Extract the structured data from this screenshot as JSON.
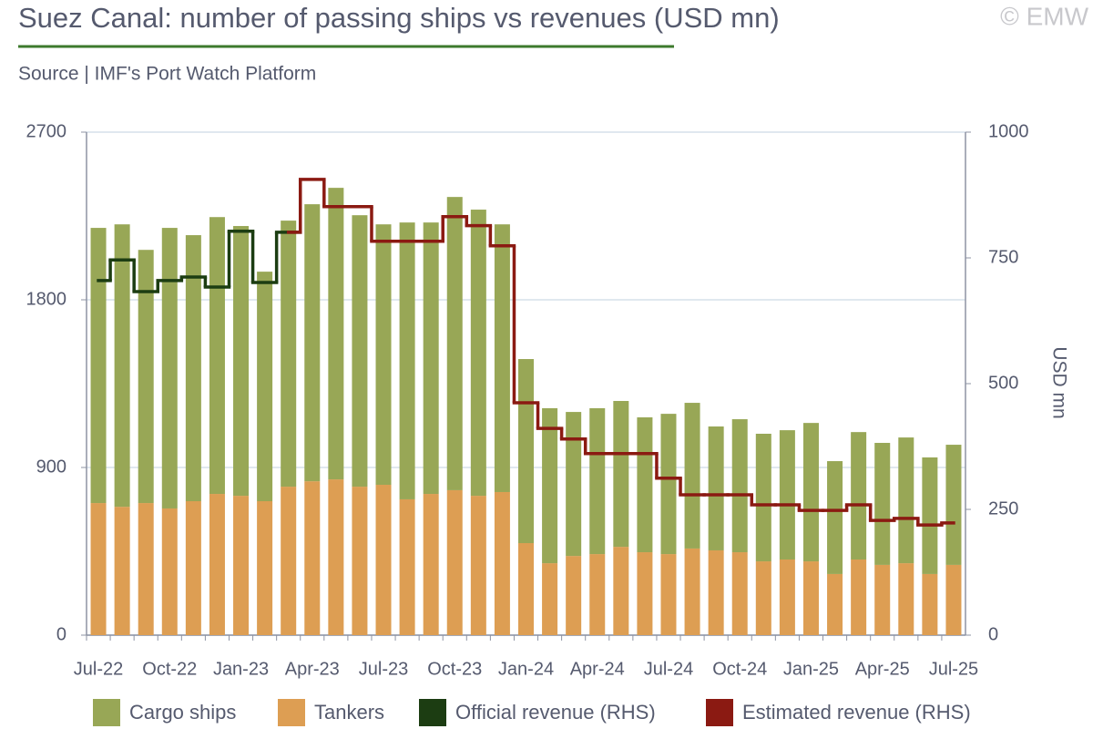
{
  "chart_data": {
    "type": "bar",
    "title": "Suez Canal: number of passing ships vs revenues (USD mn)",
    "subtitle": "Source | IMF's Port Watch Platform",
    "credit": "© EMW",
    "y2_label": "USD mn",
    "stacked": true,
    "step": true,
    "categories": [
      "Jul-22",
      null,
      null,
      "Oct-22",
      null,
      null,
      "Jan-23",
      null,
      null,
      "Apr-23",
      null,
      null,
      "Jul-23",
      null,
      null,
      "Oct-23",
      null,
      null,
      "Jan-24",
      null,
      null,
      "Apr-24",
      null,
      null,
      "Jul-24",
      null,
      null,
      "Oct-24",
      null,
      null,
      "Jan-25",
      null,
      null,
      "Apr-25",
      null,
      null,
      "Jul-25"
    ],
    "series": [
      {
        "name": "Cargo ships",
        "type": "bar",
        "color": "#98a756",
        "values": [
          1477,
          1516,
          1359,
          1506,
          1428,
          1486,
          1448,
          1232,
          1428,
          1487,
          1565,
          1457,
          1398,
          1486,
          1457,
          1574,
          1536,
          1437,
          988,
          832,
          773,
          783,
          783,
          724,
          753,
          782,
          665,
          714,
          685,
          694,
          743,
          606,
          684,
          655,
          675,
          626,
          645
        ]
      },
      {
        "name": "Tankers",
        "type": "bar",
        "color": "#dd9e53",
        "values": [
          709,
          689,
          709,
          680,
          719,
          758,
          748,
          719,
          797,
          826,
          836,
          797,
          807,
          729,
          758,
          778,
          748,
          768,
          494,
          386,
          425,
          435,
          474,
          445,
          435,
          465,
          455,
          445,
          396,
          406,
          396,
          328,
          406,
          377,
          386,
          328,
          377
        ]
      },
      {
        "name": "Official revenue (RHS)",
        "type": "line",
        "axis": "y2",
        "color": "#1c3d12",
        "values": [
          705,
          746,
          683,
          705,
          712,
          692,
          803,
          701,
          801,
          null,
          null,
          null,
          null,
          null,
          null,
          null,
          null,
          null,
          null,
          null,
          null,
          null,
          null,
          null,
          null,
          null,
          null,
          null,
          null,
          null,
          null,
          null,
          null,
          null,
          null,
          null,
          null
        ]
      },
      {
        "name": "Estimated revenue (RHS)",
        "type": "line",
        "axis": "y2",
        "color": "#8b1a12",
        "values": [
          null,
          null,
          null,
          null,
          null,
          null,
          null,
          null,
          801,
          906,
          852,
          852,
          783,
          783,
          783,
          832,
          814,
          774,
          462,
          411,
          390,
          361,
          361,
          361,
          312,
          279,
          279,
          279,
          259,
          259,
          248,
          248,
          259,
          228,
          232,
          219,
          223
        ]
      }
    ],
    "ylim": [
      0,
      2700
    ],
    "yticks": [
      0,
      900,
      1800,
      2700
    ],
    "y2lim": [
      0,
      1000
    ],
    "y2ticks": [
      0,
      250,
      500,
      750,
      1000
    ],
    "grid": true,
    "legend": "bottom"
  }
}
